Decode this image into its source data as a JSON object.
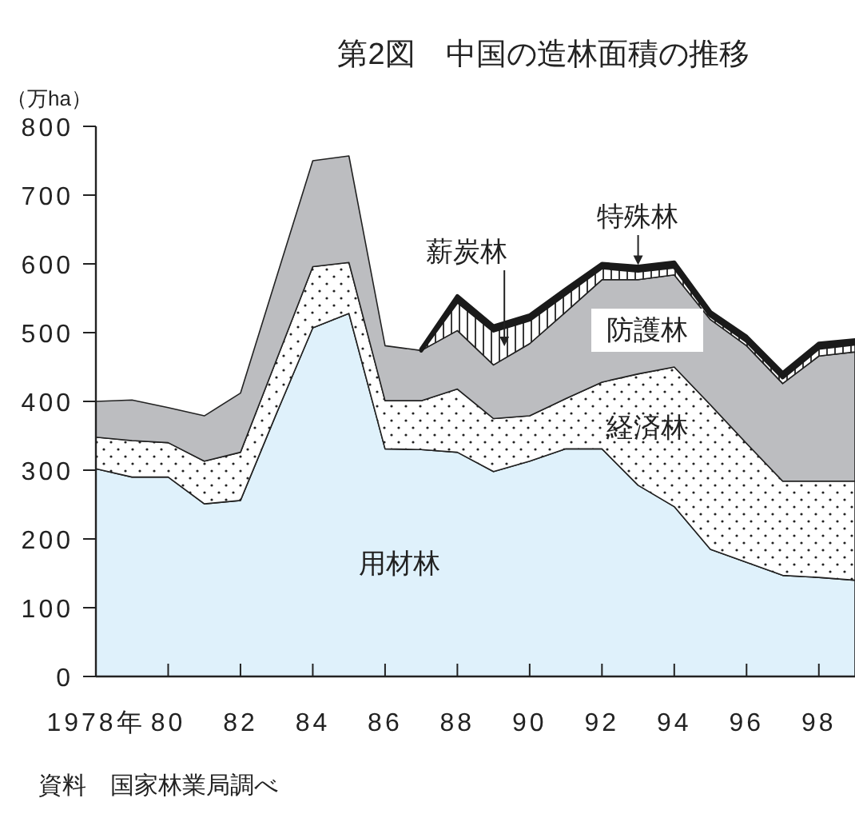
{
  "chart_data": {
    "type": "area",
    "stacked": true,
    "title": "第2図　中国の造林面積の推移",
    "ylabel": "（万ha）",
    "x": [
      1978,
      1979,
      1980,
      1981,
      1982,
      1983,
      1984,
      1985,
      1986,
      1987,
      1988,
      1989,
      1990,
      1991,
      1992,
      1993,
      1994,
      1995,
      1996,
      1997,
      1998,
      1999
    ],
    "xlim": [
      1978,
      1999
    ],
    "xticks": [
      {
        "value": 1978,
        "label": "1978年"
      },
      {
        "value": 1980,
        "label": "80"
      },
      {
        "value": 1982,
        "label": "82"
      },
      {
        "value": 1984,
        "label": "84"
      },
      {
        "value": 1986,
        "label": "86"
      },
      {
        "value": 1988,
        "label": "88"
      },
      {
        "value": 1990,
        "label": "90"
      },
      {
        "value": 1992,
        "label": "92"
      },
      {
        "value": 1994,
        "label": "94"
      },
      {
        "value": 1996,
        "label": "96"
      },
      {
        "value": 1998,
        "label": "98"
      }
    ],
    "ylim": [
      0,
      800
    ],
    "yticks": [
      0,
      100,
      200,
      300,
      400,
      500,
      600,
      700,
      800
    ],
    "series": [
      {
        "name": "用材林",
        "color": "#dff1fb",
        "values": [
          302,
          290,
          290,
          251,
          256,
          383,
          507,
          528,
          331,
          330,
          326,
          298,
          313,
          331,
          331,
          278,
          247,
          185,
          166,
          147,
          144,
          140
        ]
      },
      {
        "name": "経済林",
        "color": "#222222",
        "values": [
          46,
          53,
          50,
          62,
          70,
          78,
          89,
          74,
          70,
          71,
          92,
          77,
          66,
          73,
          97,
          162,
          203,
          210,
          173,
          137,
          140,
          144
        ]
      },
      {
        "name": "防護林",
        "color": "#bcbdc0",
        "values": [
          52,
          59,
          51,
          66,
          86,
          120,
          154,
          155,
          80,
          73,
          85,
          78,
          105,
          126,
          149,
          137,
          134,
          124,
          142,
          142,
          182,
          188
        ]
      },
      {
        "name": "薪炭林",
        "color": "#222222",
        "values": [
          null,
          null,
          null,
          null,
          null,
          null,
          null,
          null,
          null,
          0,
          43,
          50,
          35,
          27,
          18,
          13,
          12,
          6,
          7,
          9,
          12,
          12
        ]
      },
      {
        "name": "特殊林",
        "color": "#1a1a1a",
        "values": [
          null,
          null,
          null,
          null,
          null,
          null,
          null,
          null,
          null,
          2,
          7,
          6,
          6,
          6,
          5,
          6,
          6,
          5,
          6,
          6,
          6,
          5
        ]
      }
    ],
    "annotations": [
      "資料　国家林業局調べ"
    ]
  }
}
